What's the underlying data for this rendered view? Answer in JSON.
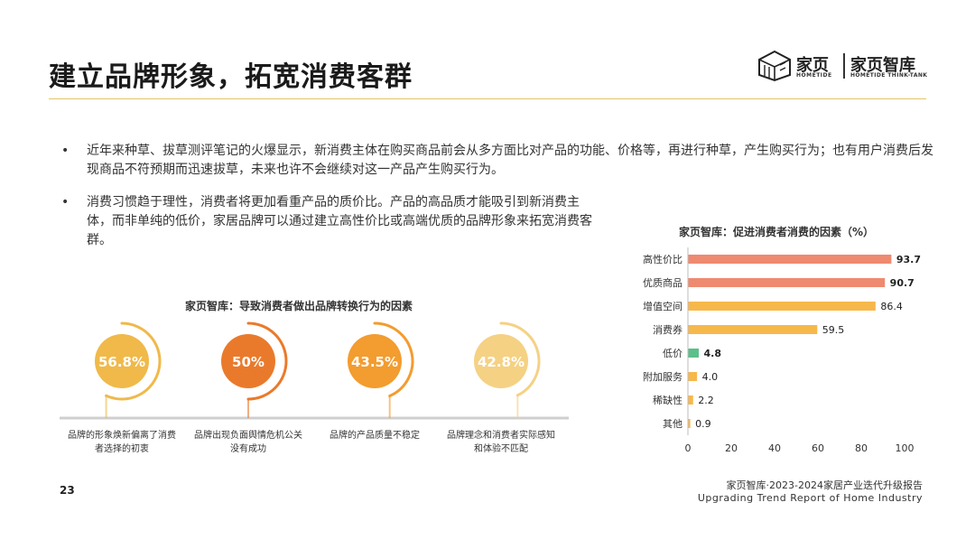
{
  "header": {
    "title": "建立品牌形象，拓宽消费客群",
    "logo": {
      "brand": "家页",
      "brand_sub": "HOMETIDE",
      "think_tank": "家页智库",
      "think_tank_sub": "HOMETIDE THINK-TANK",
      "icon": "cube-house-logo-icon"
    }
  },
  "bullets": [
    "近年来种草、拔草测评笔记的火爆显示，新消费主体在购买商品前会从多方面比对产品的功能、价格等，再进行种草，产生购买行为；也有用户消费后发现商品不符预期而迅速拔草，未来也许不会继续对这一产品产生购买行为。",
    "消费习惯趋于理性，消费者将更加看重产品的质价比。产品的高品质才能吸引到新消费主体，而非单纯的低价，家居品牌可以通过建立高性价比或高端优质的品牌形象来拓宽消费客群。"
  ],
  "bullet_symbol": "•",
  "chart_data": [
    {
      "type": "donut",
      "title": "家页智库：导致消费者做出品牌转换行为的因素",
      "categories": [
        "品牌的形象焕新偏离了消费者选择的初衷",
        "品牌出现负面舆情危机公关没有成功",
        "品牌的产品质量不稳定",
        "品牌理念和消费者实际感知和体验不匹配"
      ],
      "values": [
        56.8,
        50,
        43.5,
        42.8
      ],
      "value_labels": [
        "56.8%",
        "50%",
        "43.5%",
        "42.8%"
      ],
      "colors": [
        "#f0b94a",
        "#ea7a2b",
        "#f39c2f",
        "#f5d184"
      ]
    },
    {
      "type": "bar",
      "orientation": "horizontal",
      "title": "家页智库：促进消费者消费的因素（%）",
      "categories": [
        "高性价比",
        "优质商品",
        "增值空间",
        "消费券",
        "低价",
        "附加服务",
        "稀缺性",
        "其他"
      ],
      "values": [
        93.7,
        90.7,
        86.4,
        59.5,
        4.8,
        4.0,
        2.2,
        0.9
      ],
      "value_labels": [
        "93.7",
        "90.7",
        "86.4",
        "59.5",
        "4.8",
        "4.0",
        "2.2",
        "0.9"
      ],
      "bold_labels": [
        true,
        true,
        false,
        false,
        true,
        false,
        false,
        false
      ],
      "colors": [
        "#ee8a70",
        "#ee8a70",
        "#f7b84b",
        "#f7b84b",
        "#5cbf8a",
        "#f7b84b",
        "#f7b84b",
        "#f7b84b"
      ],
      "xlim": [
        0,
        100
      ],
      "xticks": [
        "0",
        "20",
        "40",
        "60",
        "80",
        "100"
      ],
      "grid": false
    }
  ],
  "footer": {
    "page_number": "23",
    "report_cn": "家页智库·2023-2024家居产业迭代升级报告",
    "report_en": "Upgrading Trend Report of Home Industry"
  }
}
